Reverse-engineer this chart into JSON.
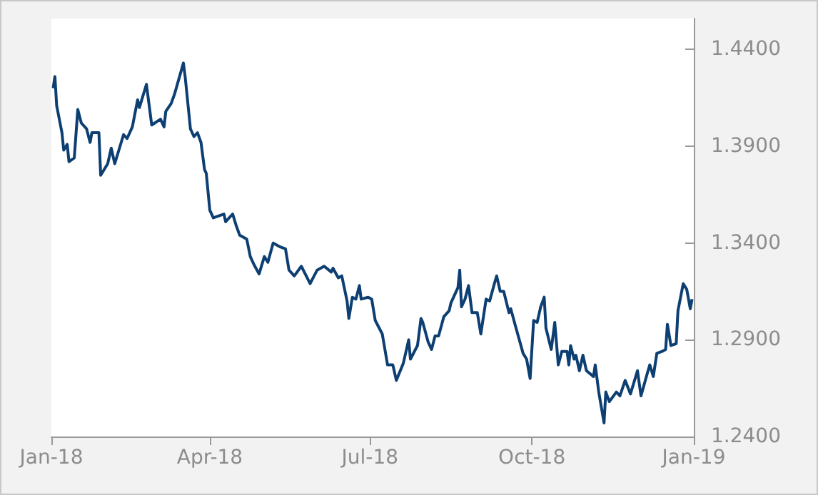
{
  "chart_data": {
    "type": "line",
    "color": "#0d3f73",
    "line_style": "solid",
    "marker": "none",
    "xlim": [
      "2018-01-01",
      "2019-01-01"
    ],
    "xticks": [
      {
        "value": "2018-01-01",
        "label": "Jan-18"
      },
      {
        "value": "2018-04-01",
        "label": "Apr-18"
      },
      {
        "value": "2018-07-01",
        "label": "Jul-18"
      },
      {
        "value": "2018-10-01",
        "label": "Oct-18"
      },
      {
        "value": "2019-01-01",
        "label": "Jan-19"
      }
    ],
    "ylim": [
      1.24,
      1.456
    ],
    "yticks": [
      {
        "value": 1.24,
        "label": "1.2400"
      },
      {
        "value": 1.29,
        "label": "1.2900"
      },
      {
        "value": 1.34,
        "label": "1.3400"
      },
      {
        "value": 1.39,
        "label": "1.3900"
      },
      {
        "value": 1.44,
        "label": "1.4400"
      }
    ],
    "x": [
      "2018-01-02",
      "2018-01-03",
      "2018-01-04",
      "2018-01-07",
      "2018-01-08",
      "2018-01-10",
      "2018-01-11",
      "2018-01-14",
      "2018-01-16",
      "2018-01-18",
      "2018-01-21",
      "2018-01-23",
      "2018-01-24",
      "2018-01-28",
      "2018-01-29",
      "2018-02-02",
      "2018-02-04",
      "2018-02-06",
      "2018-02-11",
      "2018-02-13",
      "2018-02-16",
      "2018-02-19",
      "2018-02-20",
      "2018-02-24",
      "2018-02-27",
      "2018-03-04",
      "2018-03-06",
      "2018-03-07",
      "2018-03-10",
      "2018-03-12",
      "2018-03-17",
      "2018-03-18",
      "2018-03-21",
      "2018-03-23",
      "2018-03-25",
      "2018-03-27",
      "2018-03-29",
      "2018-03-30",
      "2018-04-01",
      "2018-04-03",
      "2018-04-09",
      "2018-04-10",
      "2018-04-14",
      "2018-04-16",
      "2018-04-18",
      "2018-04-22",
      "2018-04-24",
      "2018-04-26",
      "2018-04-29",
      "2018-05-02",
      "2018-05-04",
      "2018-05-07",
      "2018-05-11",
      "2018-05-14",
      "2018-05-16",
      "2018-05-19",
      "2018-05-23",
      "2018-05-28",
      "2018-06-01",
      "2018-06-05",
      "2018-06-09",
      "2018-06-10",
      "2018-06-13",
      "2018-06-15",
      "2018-06-18",
      "2018-06-19",
      "2018-06-21",
      "2018-06-23",
      "2018-06-25",
      "2018-06-26",
      "2018-06-30",
      "2018-07-02",
      "2018-07-04",
      "2018-07-08",
      "2018-07-11",
      "2018-07-14",
      "2018-07-16",
      "2018-07-20",
      "2018-07-23",
      "2018-07-24",
      "2018-07-28",
      "2018-07-30",
      "2018-07-31",
      "2018-08-03",
      "2018-08-05",
      "2018-08-07",
      "2018-08-09",
      "2018-08-12",
      "2018-08-15",
      "2018-08-16",
      "2018-08-17",
      "2018-08-20",
      "2018-08-21",
      "2018-08-22",
      "2018-08-24",
      "2018-08-26",
      "2018-08-28",
      "2018-08-31",
      "2018-09-02",
      "2018-09-05",
      "2018-09-07",
      "2018-09-10",
      "2018-09-11",
      "2018-09-13",
      "2018-09-15",
      "2018-09-18",
      "2018-09-19",
      "2018-09-22",
      "2018-09-26",
      "2018-09-28",
      "2018-09-30",
      "2018-10-02",
      "2018-10-04",
      "2018-10-06",
      "2018-10-08",
      "2018-10-09",
      "2018-10-12",
      "2018-10-14",
      "2018-10-16",
      "2018-10-18",
      "2018-10-21",
      "2018-10-22",
      "2018-10-23",
      "2018-10-25",
      "2018-10-26",
      "2018-10-28",
      "2018-10-30",
      "2018-11-01",
      "2018-11-05",
      "2018-11-06",
      "2018-11-08",
      "2018-11-11",
      "2018-11-12",
      "2018-11-14",
      "2018-11-18",
      "2018-11-20",
      "2018-11-23",
      "2018-11-26",
      "2018-11-30",
      "2018-12-02",
      "2018-12-06",
      "2018-12-07",
      "2018-12-09",
      "2018-12-11",
      "2018-12-14",
      "2018-12-16",
      "2018-12-17",
      "2018-12-19",
      "2018-12-22",
      "2018-12-23",
      "2018-12-26",
      "2018-12-28",
      "2018-12-30",
      "2018-12-31"
    ],
    "values": [
      1.42,
      1.426,
      1.411,
      1.397,
      1.388,
      1.391,
      1.382,
      1.384,
      1.409,
      1.402,
      1.399,
      1.392,
      1.397,
      1.397,
      1.375,
      1.381,
      1.389,
      1.381,
      1.396,
      1.394,
      1.4,
      1.414,
      1.41,
      1.422,
      1.401,
      1.404,
      1.4,
      1.408,
      1.412,
      1.417,
      1.433,
      1.426,
      1.399,
      1.395,
      1.397,
      1.392,
      1.378,
      1.376,
      1.357,
      1.353,
      1.355,
      1.351,
      1.355,
      1.349,
      1.344,
      1.342,
      1.333,
      1.329,
      1.324,
      1.333,
      1.33,
      1.34,
      1.338,
      1.337,
      1.326,
      1.323,
      1.328,
      1.319,
      1.326,
      1.328,
      1.325,
      1.327,
      1.322,
      1.323,
      1.31,
      1.301,
      1.312,
      1.311,
      1.318,
      1.311,
      1.312,
      1.311,
      1.3,
      1.293,
      1.277,
      1.277,
      1.269,
      1.278,
      1.29,
      1.28,
      1.287,
      1.301,
      1.299,
      1.289,
      1.285,
      1.292,
      1.292,
      1.302,
      1.305,
      1.309,
      1.311,
      1.317,
      1.326,
      1.307,
      1.311,
      1.318,
      1.304,
      1.304,
      1.293,
      1.311,
      1.31,
      1.32,
      1.323,
      1.315,
      1.315,
      1.304,
      1.306,
      1.296,
      1.283,
      1.28,
      1.27,
      1.3,
      1.299,
      1.307,
      1.312,
      1.296,
      1.285,
      1.299,
      1.277,
      1.284,
      1.284,
      1.277,
      1.287,
      1.28,
      1.282,
      1.274,
      1.282,
      1.274,
      1.271,
      1.277,
      1.263,
      1.247,
      1.263,
      1.258,
      1.263,
      1.261,
      1.269,
      1.262,
      1.274,
      1.261,
      1.274,
      1.277,
      1.271,
      1.283,
      1.284,
      1.285,
      1.298,
      1.287,
      1.288,
      1.305,
      1.319,
      1.316,
      1.306,
      1.311
    ]
  }
}
